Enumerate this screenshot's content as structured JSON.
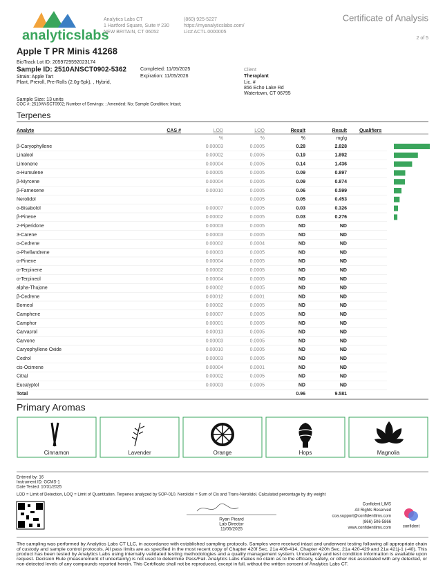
{
  "header": {
    "logo": "analyticslabs",
    "company": "Analytics Labs CT",
    "address1": "1 Hartford Square, Suite # 230",
    "address2": "NEW BRITAIN, CT 06052",
    "phone": "(860) 925-5227",
    "website": "https://myanalyticslabs.com/",
    "license": "Lic# ACTL.0000005",
    "doc_title": "Certificate of Analysis",
    "page": "2 of 5"
  },
  "product": {
    "name": "Apple T PR Minis 41268",
    "biotrack": "BioTrack Lot ID: 2059729592023174",
    "sample_id": "Sample ID: 2510ANSCT0902-5362",
    "strain": "Strain: Apple Tart",
    "type": "Plant, Preroll, Pre-Rolls (2.0g-5pk), , Hybrid,",
    "completed": "Completed: 11/05/2025",
    "expiration": "Expiration: 11/05/2026",
    "client_label": "Client",
    "client_name": "Theraplant",
    "client_lic": "Lic. #",
    "client_addr1": "856 Echo Lake Rd",
    "client_addr2": "Watertown, CT 06795",
    "sample_size": "Sample Size: 13 units",
    "coc": "COC #: 2510ANSCT0902; Number of Servings: ; Amended: No; Sample Condition: Intact;"
  },
  "terpenes": {
    "title": "Terpenes",
    "columns": [
      "Analyte",
      "CAS #",
      "LOD",
      "LOQ",
      "Result",
      "Result",
      "Qualifiers"
    ],
    "units": [
      "%",
      "%",
      "%",
      "mg/g"
    ],
    "rows": [
      [
        "β-Caryophyllene",
        "0.00003",
        "0.0005",
        0.28,
        2.828
      ],
      [
        "Linalool",
        "0.00002",
        "0.0005",
        0.19,
        1.892
      ],
      [
        "Limonene",
        "0.00004",
        "0.0005",
        0.14,
        1.436
      ],
      [
        "α-Humulene",
        "0.00005",
        "0.0005",
        0.09,
        0.897
      ],
      [
        "β-Myrcene",
        "0.00004",
        "0.0005",
        0.09,
        0.874
      ],
      [
        "β-Farnesene",
        "0.00010",
        "0.0005",
        0.06,
        0.599
      ],
      [
        "Nerolidol",
        null,
        "0.0005",
        0.05,
        0.453
      ],
      [
        "α-Bisabolol",
        "0.00007",
        "0.0005",
        0.03,
        0.326
      ],
      [
        "β-Pinene",
        "0.00002",
        "0.0005",
        0.03,
        0.276
      ],
      [
        "2-Piperidone",
        "0.00003",
        "0.0005",
        "ND",
        "ND"
      ],
      [
        "3-Carene",
        "0.00003",
        "0.0005",
        "ND",
        "ND"
      ],
      [
        "α-Cedrene",
        "0.00002",
        "0.0004",
        "ND",
        "ND"
      ],
      [
        "α-Phellandrene",
        "0.00003",
        "0.0005",
        "ND",
        "ND"
      ],
      [
        "α-Pinene",
        "0.00004",
        "0.0005",
        "ND",
        "ND"
      ],
      [
        "α-Terpinene",
        "0.00002",
        "0.0005",
        "ND",
        "ND"
      ],
      [
        "α-Terpineol",
        "0.00004",
        "0.0005",
        "ND",
        "ND"
      ],
      [
        "alpha-Thujone",
        "0.00002",
        "0.0005",
        "ND",
        "ND"
      ],
      [
        "β-Cedrene",
        "0.00012",
        "0.0001",
        "ND",
        "ND"
      ],
      [
        "Borneol",
        "0.00002",
        "0.0005",
        "ND",
        "ND"
      ],
      [
        "Camphene",
        "0.00007",
        "0.0005",
        "ND",
        "ND"
      ],
      [
        "Camphor",
        "0.00001",
        "0.0005",
        "ND",
        "ND"
      ],
      [
        "Carvacrol",
        "0.00013",
        "0.0005",
        "ND",
        "ND"
      ],
      [
        "Carvone",
        "0.00003",
        "0.0005",
        "ND",
        "ND"
      ],
      [
        "Caryophyllene Oxide",
        "0.00010",
        "0.0005",
        "ND",
        "ND"
      ],
      [
        "Cedrol",
        "0.00003",
        "0.0005",
        "ND",
        "ND"
      ],
      [
        "cis-Ocimene",
        "0.00004",
        "0.0001",
        "ND",
        "ND"
      ],
      [
        "Citral",
        "0.00002",
        "0.0005",
        "ND",
        "ND"
      ],
      [
        "Eucalyptol",
        "0.00003",
        "0.0005",
        "ND",
        "ND"
      ]
    ],
    "total": {
      "label": "Total",
      "percent": 0.96,
      "mg": 9.581
    }
  },
  "aromas": {
    "title": "Primary Aromas",
    "items": [
      "Cinnamon",
      "Lavender",
      "Orange",
      "Hops",
      "Magnolia"
    ]
  },
  "footer": {
    "entered": "Entered by: 16",
    "instrument": "Instrument ID: GCMS-1",
    "date_tested": "Date Tested: 10/31/2025",
    "note": "LOD = Limit of Detection, LOQ = Limit of Quantitation. Terpenes analyzed by SOP-010. Nerolidol = Sum of Cis and Trans-Nerolidol. Calculated percentage by dry weight",
    "signer": "Ryan Picard",
    "signer_title": "Lab Director",
    "sign_date": "11/05/2025",
    "lims": [
      "Confident LIMS",
      "All Rights Reserved",
      "coa.support@confidentlims.com",
      "(866) 506-5866",
      "www.confidentlims.com"
    ],
    "lims_logo": "confident",
    "disclaimer": [
      "The sampling was performed by Analytics Labs CT LLC, in accordance with established sampling protocols. Samples were received intact and underwent testing following all appropriate chain",
      "of custody and sample control protocols. All pass limits are as specified in the most recent copy of Chapter 420f Sec. 21a 408-414, Chapter 420h Sec. 21a 420-429 and 21a 421j-1 (-40). This",
      "product has been tested by Analytics Labs using internally validated testing methodologies and a quality management system. Uncertainty and test condition information is available upon",
      "request. Decision Rule (measurement of uncertainty) is not used to determine Pass/Fail. Analytics Labs makes no claim as to the efficacy, safety, or other risk associated with any detected, or",
      "non-detected levels of any compounds reported herein. This Certificate shall not be reproduced, except in full, without the written consent of Analytics Labs CT."
    ]
  }
}
